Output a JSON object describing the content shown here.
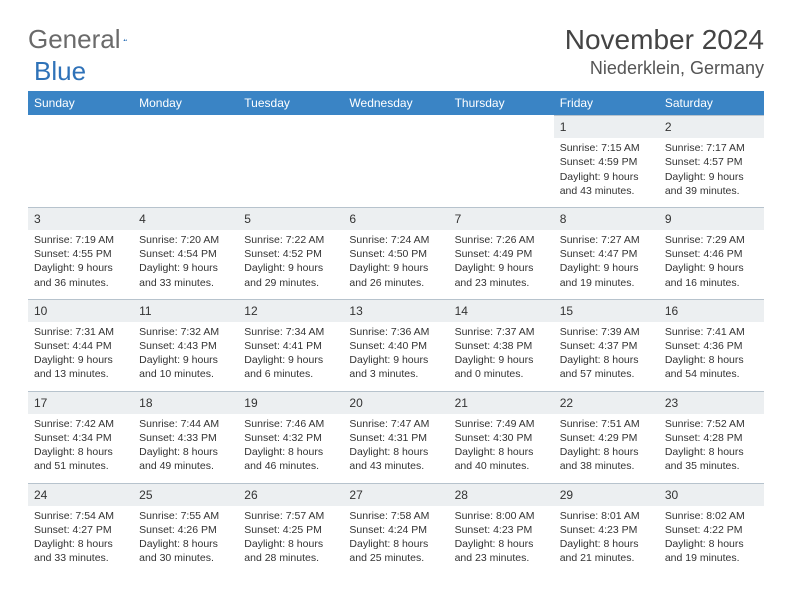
{
  "logo": {
    "general": "General",
    "blue": "Blue"
  },
  "title": "November 2024",
  "location": "Niederklein, Germany",
  "colors": {
    "header_bg": "#3a84c5",
    "header_text": "#ffffff",
    "daynum_bg": "#eceff1",
    "border": "#b7c3cd",
    "logo_blue": "#2f72b8",
    "logo_gray": "#6a6a6a",
    "page_bg": "#ffffff",
    "text": "#333333"
  },
  "weekdays": [
    "Sunday",
    "Monday",
    "Tuesday",
    "Wednesday",
    "Thursday",
    "Friday",
    "Saturday"
  ],
  "weeks": [
    [
      {
        "n": "",
        "sr": "",
        "ss": "",
        "dl1": "",
        "dl2": ""
      },
      {
        "n": "",
        "sr": "",
        "ss": "",
        "dl1": "",
        "dl2": ""
      },
      {
        "n": "",
        "sr": "",
        "ss": "",
        "dl1": "",
        "dl2": ""
      },
      {
        "n": "",
        "sr": "",
        "ss": "",
        "dl1": "",
        "dl2": ""
      },
      {
        "n": "",
        "sr": "",
        "ss": "",
        "dl1": "",
        "dl2": ""
      },
      {
        "n": "1",
        "sr": "Sunrise: 7:15 AM",
        "ss": "Sunset: 4:59 PM",
        "dl1": "Daylight: 9 hours",
        "dl2": "and 43 minutes."
      },
      {
        "n": "2",
        "sr": "Sunrise: 7:17 AM",
        "ss": "Sunset: 4:57 PM",
        "dl1": "Daylight: 9 hours",
        "dl2": "and 39 minutes."
      }
    ],
    [
      {
        "n": "3",
        "sr": "Sunrise: 7:19 AM",
        "ss": "Sunset: 4:55 PM",
        "dl1": "Daylight: 9 hours",
        "dl2": "and 36 minutes."
      },
      {
        "n": "4",
        "sr": "Sunrise: 7:20 AM",
        "ss": "Sunset: 4:54 PM",
        "dl1": "Daylight: 9 hours",
        "dl2": "and 33 minutes."
      },
      {
        "n": "5",
        "sr": "Sunrise: 7:22 AM",
        "ss": "Sunset: 4:52 PM",
        "dl1": "Daylight: 9 hours",
        "dl2": "and 29 minutes."
      },
      {
        "n": "6",
        "sr": "Sunrise: 7:24 AM",
        "ss": "Sunset: 4:50 PM",
        "dl1": "Daylight: 9 hours",
        "dl2": "and 26 minutes."
      },
      {
        "n": "7",
        "sr": "Sunrise: 7:26 AM",
        "ss": "Sunset: 4:49 PM",
        "dl1": "Daylight: 9 hours",
        "dl2": "and 23 minutes."
      },
      {
        "n": "8",
        "sr": "Sunrise: 7:27 AM",
        "ss": "Sunset: 4:47 PM",
        "dl1": "Daylight: 9 hours",
        "dl2": "and 19 minutes."
      },
      {
        "n": "9",
        "sr": "Sunrise: 7:29 AM",
        "ss": "Sunset: 4:46 PM",
        "dl1": "Daylight: 9 hours",
        "dl2": "and 16 minutes."
      }
    ],
    [
      {
        "n": "10",
        "sr": "Sunrise: 7:31 AM",
        "ss": "Sunset: 4:44 PM",
        "dl1": "Daylight: 9 hours",
        "dl2": "and 13 minutes."
      },
      {
        "n": "11",
        "sr": "Sunrise: 7:32 AM",
        "ss": "Sunset: 4:43 PM",
        "dl1": "Daylight: 9 hours",
        "dl2": "and 10 minutes."
      },
      {
        "n": "12",
        "sr": "Sunrise: 7:34 AM",
        "ss": "Sunset: 4:41 PM",
        "dl1": "Daylight: 9 hours",
        "dl2": "and 6 minutes."
      },
      {
        "n": "13",
        "sr": "Sunrise: 7:36 AM",
        "ss": "Sunset: 4:40 PM",
        "dl1": "Daylight: 9 hours",
        "dl2": "and 3 minutes."
      },
      {
        "n": "14",
        "sr": "Sunrise: 7:37 AM",
        "ss": "Sunset: 4:38 PM",
        "dl1": "Daylight: 9 hours",
        "dl2": "and 0 minutes."
      },
      {
        "n": "15",
        "sr": "Sunrise: 7:39 AM",
        "ss": "Sunset: 4:37 PM",
        "dl1": "Daylight: 8 hours",
        "dl2": "and 57 minutes."
      },
      {
        "n": "16",
        "sr": "Sunrise: 7:41 AM",
        "ss": "Sunset: 4:36 PM",
        "dl1": "Daylight: 8 hours",
        "dl2": "and 54 minutes."
      }
    ],
    [
      {
        "n": "17",
        "sr": "Sunrise: 7:42 AM",
        "ss": "Sunset: 4:34 PM",
        "dl1": "Daylight: 8 hours",
        "dl2": "and 51 minutes."
      },
      {
        "n": "18",
        "sr": "Sunrise: 7:44 AM",
        "ss": "Sunset: 4:33 PM",
        "dl1": "Daylight: 8 hours",
        "dl2": "and 49 minutes."
      },
      {
        "n": "19",
        "sr": "Sunrise: 7:46 AM",
        "ss": "Sunset: 4:32 PM",
        "dl1": "Daylight: 8 hours",
        "dl2": "and 46 minutes."
      },
      {
        "n": "20",
        "sr": "Sunrise: 7:47 AM",
        "ss": "Sunset: 4:31 PM",
        "dl1": "Daylight: 8 hours",
        "dl2": "and 43 minutes."
      },
      {
        "n": "21",
        "sr": "Sunrise: 7:49 AM",
        "ss": "Sunset: 4:30 PM",
        "dl1": "Daylight: 8 hours",
        "dl2": "and 40 minutes."
      },
      {
        "n": "22",
        "sr": "Sunrise: 7:51 AM",
        "ss": "Sunset: 4:29 PM",
        "dl1": "Daylight: 8 hours",
        "dl2": "and 38 minutes."
      },
      {
        "n": "23",
        "sr": "Sunrise: 7:52 AM",
        "ss": "Sunset: 4:28 PM",
        "dl1": "Daylight: 8 hours",
        "dl2": "and 35 minutes."
      }
    ],
    [
      {
        "n": "24",
        "sr": "Sunrise: 7:54 AM",
        "ss": "Sunset: 4:27 PM",
        "dl1": "Daylight: 8 hours",
        "dl2": "and 33 minutes."
      },
      {
        "n": "25",
        "sr": "Sunrise: 7:55 AM",
        "ss": "Sunset: 4:26 PM",
        "dl1": "Daylight: 8 hours",
        "dl2": "and 30 minutes."
      },
      {
        "n": "26",
        "sr": "Sunrise: 7:57 AM",
        "ss": "Sunset: 4:25 PM",
        "dl1": "Daylight: 8 hours",
        "dl2": "and 28 minutes."
      },
      {
        "n": "27",
        "sr": "Sunrise: 7:58 AM",
        "ss": "Sunset: 4:24 PM",
        "dl1": "Daylight: 8 hours",
        "dl2": "and 25 minutes."
      },
      {
        "n": "28",
        "sr": "Sunrise: 8:00 AM",
        "ss": "Sunset: 4:23 PM",
        "dl1": "Daylight: 8 hours",
        "dl2": "and 23 minutes."
      },
      {
        "n": "29",
        "sr": "Sunrise: 8:01 AM",
        "ss": "Sunset: 4:23 PM",
        "dl1": "Daylight: 8 hours",
        "dl2": "and 21 minutes."
      },
      {
        "n": "30",
        "sr": "Sunrise: 8:02 AM",
        "ss": "Sunset: 4:22 PM",
        "dl1": "Daylight: 8 hours",
        "dl2": "and 19 minutes."
      }
    ]
  ]
}
